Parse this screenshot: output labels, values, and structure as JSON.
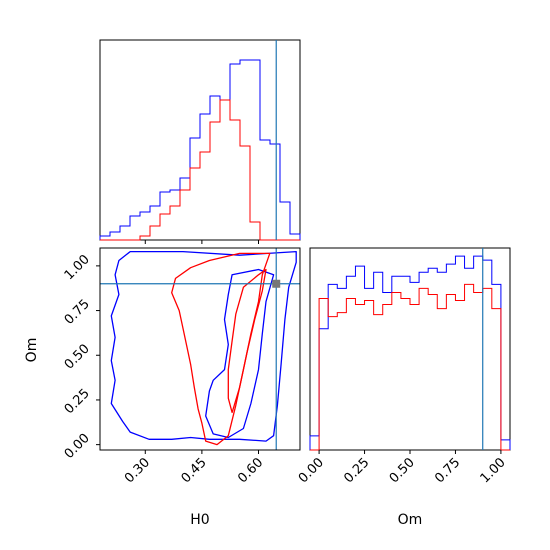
{
  "colors": {
    "series_a": "#0000ff",
    "series_b": "#ff0000",
    "truth": "#1f77b4",
    "truth_marker": "#777777",
    "axes": "#000000"
  },
  "chart_data": [
    {
      "type": "histogram",
      "panel": "H0-marginal",
      "xlim": [
        0.18,
        0.71
      ],
      "x_ticks": [
        0.3,
        0.45,
        0.6
      ],
      "x_tick_labels_shown": false,
      "y_ticks": [],
      "truth_x": 0.647,
      "bin_edges": [
        0.18,
        0.2065,
        0.233,
        0.2595,
        0.286,
        0.3125,
        0.339,
        0.3655,
        0.392,
        0.4185,
        0.445,
        0.4715,
        0.498,
        0.5245,
        0.551,
        0.5775,
        0.604,
        0.6305,
        0.657,
        0.6835,
        0.71
      ],
      "series": [
        {
          "color": "blue",
          "values": [
            0.02,
            0.04,
            0.07,
            0.12,
            0.14,
            0.17,
            0.24,
            0.25,
            0.31,
            0.51,
            0.63,
            0.72,
            0.7,
            0.88,
            0.9,
            0.9,
            0.5,
            0.48,
            0.19,
            0.03
          ]
        },
        {
          "color": "red",
          "values": [
            0,
            0,
            0,
            0,
            0.02,
            0.07,
            0.13,
            0.17,
            0.25,
            0.36,
            0.44,
            0.59,
            0.7,
            0.6,
            0.47,
            0.09,
            0,
            0,
            0,
            0
          ]
        }
      ]
    },
    {
      "type": "contour",
      "panel": "H0-Om-joint",
      "xlabel": "H0",
      "ylabel": "Om",
      "xlim": [
        0.18,
        0.71
      ],
      "ylim": [
        -0.03,
        1.1
      ],
      "x_ticks": [
        0.3,
        0.45,
        0.6
      ],
      "x_tick_labels": [
        "0.30",
        "0.45",
        "0.60"
      ],
      "y_ticks": [
        0.0,
        0.25,
        0.5,
        0.75,
        1.0
      ],
      "y_tick_labels": [
        "0.00",
        "0.25",
        "0.50",
        "0.75",
        "1.00"
      ],
      "truth": {
        "x": 0.647,
        "y": 0.9
      },
      "contours": [
        {
          "color": "blue",
          "level": "outer",
          "points": [
            [
              0.26,
              1.08
            ],
            [
              0.4,
              1.08
            ],
            [
              0.55,
              1.06
            ],
            [
              0.7,
              1.08
            ],
            [
              0.7,
              1.02
            ],
            [
              0.68,
              0.88
            ],
            [
              0.67,
              0.7
            ],
            [
              0.66,
              0.45
            ],
            [
              0.65,
              0.22
            ],
            [
              0.64,
              0.05
            ],
            [
              0.62,
              0.02
            ],
            [
              0.55,
              0.03
            ],
            [
              0.47,
              0.03
            ],
            [
              0.42,
              0.04
            ],
            [
              0.37,
              0.03
            ],
            [
              0.31,
              0.03
            ],
            [
              0.26,
              0.07
            ],
            [
              0.24,
              0.13
            ],
            [
              0.21,
              0.23
            ],
            [
              0.22,
              0.36
            ],
            [
              0.21,
              0.47
            ],
            [
              0.22,
              0.6
            ],
            [
              0.21,
              0.72
            ],
            [
              0.23,
              0.84
            ],
            [
              0.22,
              0.95
            ],
            [
              0.23,
              1.03
            ]
          ]
        },
        {
          "color": "blue",
          "level": "inner",
          "points": [
            [
              0.53,
              0.95
            ],
            [
              0.6,
              0.98
            ],
            [
              0.64,
              0.95
            ],
            [
              0.62,
              0.8
            ],
            [
              0.61,
              0.62
            ],
            [
              0.6,
              0.42
            ],
            [
              0.58,
              0.23
            ],
            [
              0.56,
              0.09
            ],
            [
              0.52,
              0.04
            ],
            [
              0.48,
              0.06
            ],
            [
              0.46,
              0.16
            ],
            [
              0.47,
              0.3
            ],
            [
              0.48,
              0.36
            ],
            [
              0.51,
              0.42
            ],
            [
              0.52,
              0.56
            ],
            [
              0.51,
              0.7
            ],
            [
              0.52,
              0.84
            ]
          ]
        },
        {
          "color": "red",
          "level": "outer",
          "points": [
            [
              0.38,
              0.93
            ],
            [
              0.42,
              0.99
            ],
            [
              0.47,
              1.03
            ],
            [
              0.55,
              1.07
            ],
            [
              0.63,
              1.07
            ],
            [
              0.61,
              0.95
            ],
            [
              0.6,
              0.8
            ],
            [
              0.58,
              0.62
            ],
            [
              0.56,
              0.42
            ],
            [
              0.54,
              0.22
            ],
            [
              0.52,
              0.05
            ],
            [
              0.49,
              0.0
            ],
            [
              0.46,
              0.02
            ],
            [
              0.45,
              0.12
            ],
            [
              0.44,
              0.2
            ],
            [
              0.43,
              0.32
            ],
            [
              0.42,
              0.45
            ],
            [
              0.41,
              0.55
            ],
            [
              0.4,
              0.65
            ],
            [
              0.39,
              0.75
            ],
            [
              0.37,
              0.85
            ]
          ]
        },
        {
          "color": "red",
          "level": "inner",
          "points": [
            [
              0.56,
              0.88
            ],
            [
              0.6,
              0.95
            ],
            [
              0.62,
              0.98
            ],
            [
              0.61,
              0.86
            ],
            [
              0.59,
              0.7
            ],
            [
              0.57,
              0.52
            ],
            [
              0.55,
              0.32
            ],
            [
              0.53,
              0.18
            ],
            [
              0.52,
              0.26
            ],
            [
              0.52,
              0.42
            ],
            [
              0.53,
              0.58
            ],
            [
              0.54,
              0.73
            ]
          ]
        }
      ]
    },
    {
      "type": "histogram",
      "panel": "Om-marginal",
      "xlabel": "Om",
      "xlim": [
        -0.05,
        1.05
      ],
      "x_ticks": [
        0.0,
        0.25,
        0.5,
        0.75,
        1.0
      ],
      "x_tick_labels": [
        "0.00",
        "0.25",
        "0.50",
        "0.75",
        "1.00"
      ],
      "y_ticks": [],
      "truth_x": 0.9,
      "bin_edges": [
        -0.05,
        0.0,
        0.05,
        0.1,
        0.15,
        0.2,
        0.25,
        0.3,
        0.35,
        0.4,
        0.45,
        0.5,
        0.55,
        0.6,
        0.65,
        0.7,
        0.75,
        0.8,
        0.85,
        0.9,
        0.95,
        1.0,
        1.05
      ],
      "series": [
        {
          "color": "blue",
          "values": [
            0.07,
            0.6,
            0.82,
            0.8,
            0.86,
            0.91,
            0.8,
            0.88,
            0.78,
            0.86,
            0.86,
            0.83,
            0.88,
            0.9,
            0.88,
            0.92,
            0.96,
            0.9,
            0.96,
            0.94,
            0.82,
            0.05
          ]
        },
        {
          "color": "red",
          "values": [
            0.0,
            0.75,
            0.66,
            0.68,
            0.75,
            0.72,
            0.74,
            0.67,
            0.72,
            0.78,
            0.75,
            0.72,
            0.8,
            0.77,
            0.7,
            0.77,
            0.74,
            0.82,
            0.78,
            0.8,
            0.7,
            0.0
          ]
        }
      ]
    }
  ]
}
